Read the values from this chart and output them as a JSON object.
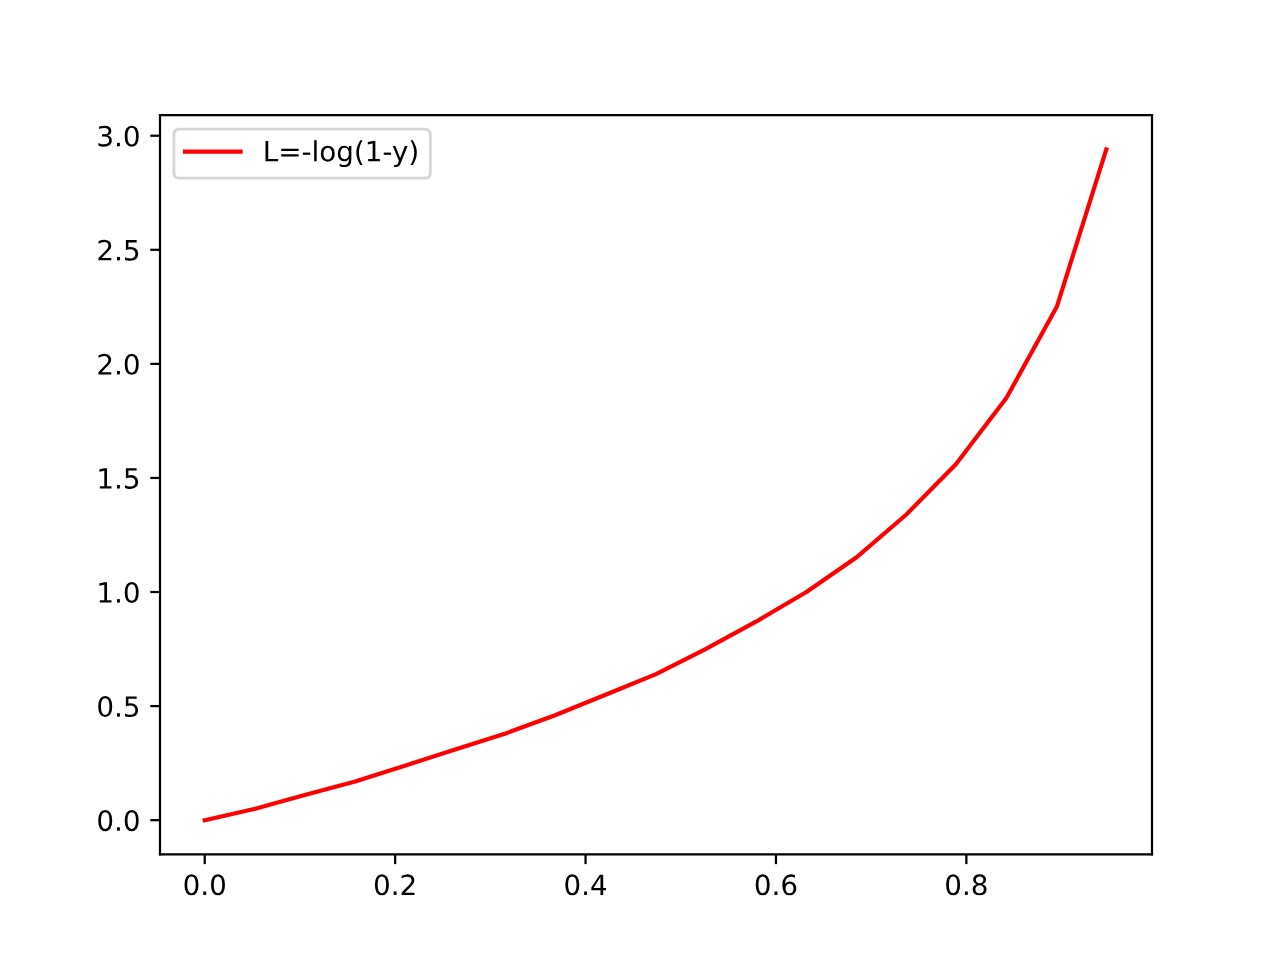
{
  "chart_data": {
    "type": "line",
    "x": [
      0,
      0.053,
      0.105,
      0.158,
      0.211,
      0.263,
      0.316,
      0.368,
      0.421,
      0.474,
      0.526,
      0.579,
      0.632,
      0.684,
      0.737,
      0.789,
      0.842,
      0.895,
      0.947
    ],
    "series": [
      {
        "name": "L=-log(1-y)",
        "color": "#ff0000",
        "values": [
          0,
          0.05,
          0.11,
          0.17,
          0.24,
          0.31,
          0.38,
          0.46,
          0.55,
          0.64,
          0.75,
          0.87,
          1.0,
          1.15,
          1.34,
          1.56,
          1.85,
          2.25,
          2.94
        ]
      }
    ],
    "xlim": [
      -0.047,
      0.995
    ],
    "ylim": [
      -0.15,
      3.09
    ],
    "xticks": [
      {
        "value": 0,
        "label": "0.0"
      },
      0.2,
      0.4,
      0.6,
      0.8
    ],
    "yticks": [
      {
        "value": 0,
        "label": "0.0"
      },
      0.5,
      {
        "value": 1,
        "label": "1.0"
      },
      1.5,
      {
        "value": 2,
        "label": "2.0"
      },
      2.5,
      {
        "value": 3,
        "label": "3.0"
      }
    ],
    "legend": "top left",
    "grid": false
  }
}
